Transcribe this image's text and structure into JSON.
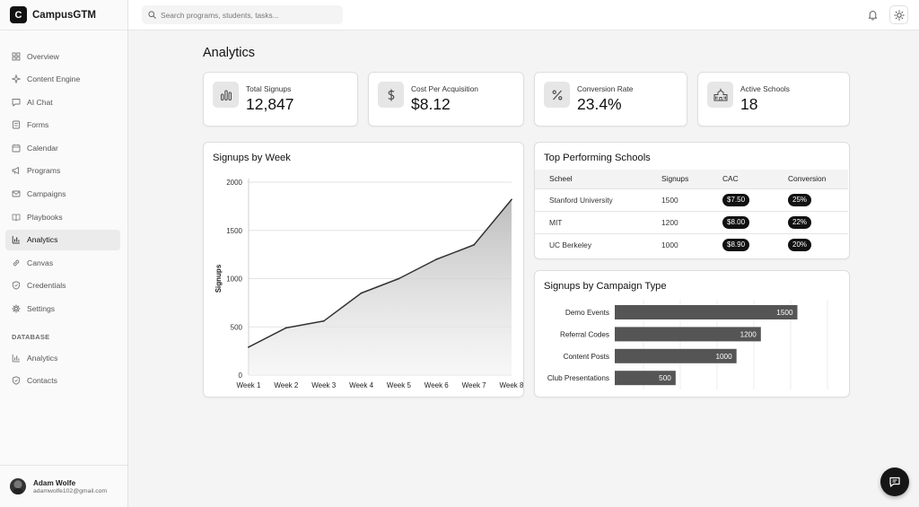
{
  "brand": {
    "logo_letter": "C",
    "name": "CampusGTM"
  },
  "search": {
    "placeholder": "Search programs, students, tasks..."
  },
  "sidebar": {
    "items": [
      {
        "label": "Overview",
        "icon": "grid-icon"
      },
      {
        "label": "Content Engine",
        "icon": "sparkle-icon"
      },
      {
        "label": "AI Chat",
        "icon": "message-icon"
      },
      {
        "label": "Forms",
        "icon": "form-icon"
      },
      {
        "label": "Calendar",
        "icon": "calendar-icon"
      },
      {
        "label": "Programs",
        "icon": "megaphone-icon"
      },
      {
        "label": "Campaigns",
        "icon": "mail-icon"
      },
      {
        "label": "Playbooks",
        "icon": "book-icon"
      },
      {
        "label": "Analytics",
        "icon": "bar-chart-icon",
        "active": true
      },
      {
        "label": "Canvas",
        "icon": "link-icon"
      },
      {
        "label": "Credentials",
        "icon": "shield-icon"
      },
      {
        "label": "Settings",
        "icon": "gear-icon"
      }
    ],
    "database_label": "DATABASE",
    "database_items": [
      {
        "label": "Analytics",
        "icon": "bar-chart-icon"
      },
      {
        "label": "Contacts",
        "icon": "shield-icon"
      }
    ]
  },
  "user": {
    "name": "Adam Wolfe",
    "email": "adamwolfe102@gmail.com"
  },
  "page": {
    "title": "Analytics"
  },
  "stats": [
    {
      "label": "Total Signups",
      "value": "12,847",
      "icon": "bar-chart-icon"
    },
    {
      "label": "Cost Per Acquisition",
      "value": "$8.12",
      "icon": "dollar-icon"
    },
    {
      "label": "Conversion Rate",
      "value": "23.4%",
      "icon": "percent-icon"
    },
    {
      "label": "Active Schools",
      "value": "18",
      "icon": "school-icon"
    }
  ],
  "signups_chart": {
    "title": "Signups by Week",
    "chart_data": {
      "type": "area",
      "categories": [
        "Week 1",
        "Week 2",
        "Week 3",
        "Week 4",
        "Week 5",
        "Week 6",
        "Week 7",
        "Week 8"
      ],
      "values": [
        290,
        490,
        560,
        850,
        1000,
        1200,
        1350,
        1820
      ],
      "ylabel": "Signups",
      "ylim": [
        0,
        2000
      ],
      "yticks": [
        0,
        500,
        1000,
        1500,
        2000
      ],
      "grid": true
    }
  },
  "schools_table": {
    "title": "Top Performing Schools",
    "headers": [
      "Scheel",
      "Signups",
      "CAC",
      "Conversion"
    ],
    "rows": [
      {
        "school": "Stanford University",
        "signups": "1500",
        "cac": "$7.50",
        "conversion": "25%"
      },
      {
        "school": "MIT",
        "signups": "1200",
        "cac": "$8.00",
        "conversion": "22%"
      },
      {
        "school": "UC Berkeley",
        "signups": "1000",
        "cac": "$8.90",
        "conversion": "20%"
      }
    ]
  },
  "campaign_chart": {
    "title": "Signups by Campaign Type",
    "chart_data": {
      "type": "bar",
      "orientation": "horizontal",
      "categories": [
        "Demo Events",
        "Referral Codes",
        "Content Posts",
        "Club Presentations"
      ],
      "values": [
        1500,
        1200,
        1000,
        500
      ],
      "xlim": [
        0,
        1850
      ],
      "bar_color": "#555555",
      "grid": true
    }
  }
}
